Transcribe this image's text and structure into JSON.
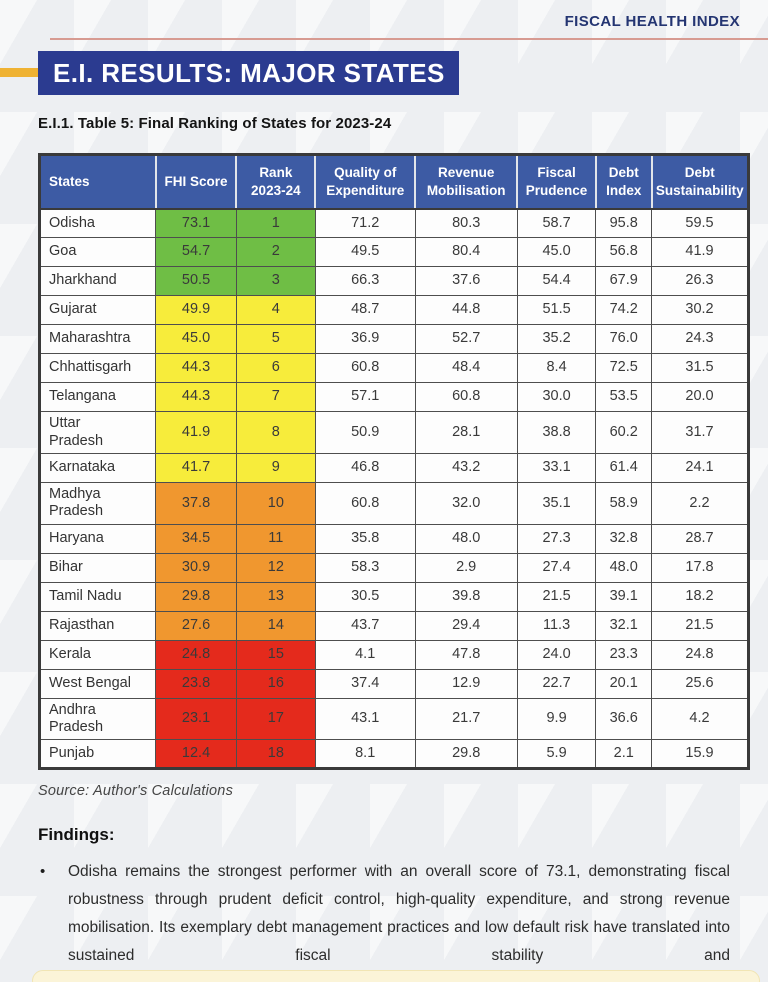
{
  "header": {
    "brand": "FISCAL HEALTH INDEX",
    "title": "E.I. RESULTS: MAJOR STATES"
  },
  "table": {
    "caption": "E.I.1. Table 5: Final Ranking of States for 2023-24",
    "columns": [
      "States",
      "FHI Score",
      "Rank\n2023-24",
      "Quality of\nExpenditure",
      "Revenue\nMobilisation",
      "Fiscal\nPrudence",
      "Debt\nIndex",
      "Debt\nSustainability"
    ],
    "rows": [
      {
        "state": "Odisha",
        "fhi_score": "73.1",
        "rank": "1",
        "tier": "green",
        "quality_of_expenditure": "71.2",
        "revenue_mobilisation": "80.3",
        "fiscal_prudence": "58.7",
        "debt_index": "95.8",
        "debt_sustainability": "59.5"
      },
      {
        "state": "Goa",
        "fhi_score": "54.7",
        "rank": "2",
        "tier": "green",
        "quality_of_expenditure": "49.5",
        "revenue_mobilisation": "80.4",
        "fiscal_prudence": "45.0",
        "debt_index": "56.8",
        "debt_sustainability": "41.9"
      },
      {
        "state": "Jharkhand",
        "fhi_score": "50.5",
        "rank": "3",
        "tier": "green",
        "quality_of_expenditure": "66.3",
        "revenue_mobilisation": "37.6",
        "fiscal_prudence": "54.4",
        "debt_index": "67.9",
        "debt_sustainability": "26.3"
      },
      {
        "state": "Gujarat",
        "fhi_score": "49.9",
        "rank": "4",
        "tier": "yellow",
        "quality_of_expenditure": "48.7",
        "revenue_mobilisation": "44.8",
        "fiscal_prudence": "51.5",
        "debt_index": "74.2",
        "debt_sustainability": "30.2"
      },
      {
        "state": "Maharashtra",
        "fhi_score": "45.0",
        "rank": "5",
        "tier": "yellow",
        "quality_of_expenditure": "36.9",
        "revenue_mobilisation": "52.7",
        "fiscal_prudence": "35.2",
        "debt_index": "76.0",
        "debt_sustainability": "24.3"
      },
      {
        "state": "Chhattisgarh",
        "fhi_score": "44.3",
        "rank": "6",
        "tier": "yellow",
        "quality_of_expenditure": "60.8",
        "revenue_mobilisation": "48.4",
        "fiscal_prudence": "8.4",
        "debt_index": "72.5",
        "debt_sustainability": "31.5"
      },
      {
        "state": "Telangana",
        "fhi_score": "44.3",
        "rank": "7",
        "tier": "yellow",
        "quality_of_expenditure": "57.1",
        "revenue_mobilisation": "60.8",
        "fiscal_prudence": "30.0",
        "debt_index": "53.5",
        "debt_sustainability": "20.0"
      },
      {
        "state": "Uttar\nPradesh",
        "fhi_score": "41.9",
        "rank": "8",
        "tier": "yellow",
        "quality_of_expenditure": "50.9",
        "revenue_mobilisation": "28.1",
        "fiscal_prudence": "38.8",
        "debt_index": "60.2",
        "debt_sustainability": "31.7"
      },
      {
        "state": "Karnataka",
        "fhi_score": "41.7",
        "rank": "9",
        "tier": "yellow",
        "quality_of_expenditure": "46.8",
        "revenue_mobilisation": "43.2",
        "fiscal_prudence": "33.1",
        "debt_index": "61.4",
        "debt_sustainability": "24.1"
      },
      {
        "state": "Madhya\nPradesh",
        "fhi_score": "37.8",
        "rank": "10",
        "tier": "orange",
        "quality_of_expenditure": "60.8",
        "revenue_mobilisation": "32.0",
        "fiscal_prudence": "35.1",
        "debt_index": "58.9",
        "debt_sustainability": "2.2"
      },
      {
        "state": "Haryana",
        "fhi_score": "34.5",
        "rank": "11",
        "tier": "orange",
        "quality_of_expenditure": "35.8",
        "revenue_mobilisation": "48.0",
        "fiscal_prudence": "27.3",
        "debt_index": "32.8",
        "debt_sustainability": "28.7"
      },
      {
        "state": "Bihar",
        "fhi_score": "30.9",
        "rank": "12",
        "tier": "orange",
        "quality_of_expenditure": "58.3",
        "revenue_mobilisation": "2.9",
        "fiscal_prudence": "27.4",
        "debt_index": "48.0",
        "debt_sustainability": "17.8"
      },
      {
        "state": "Tamil Nadu",
        "fhi_score": "29.8",
        "rank": "13",
        "tier": "orange",
        "quality_of_expenditure": "30.5",
        "revenue_mobilisation": "39.8",
        "fiscal_prudence": "21.5",
        "debt_index": "39.1",
        "debt_sustainability": "18.2"
      },
      {
        "state": "Rajasthan",
        "fhi_score": "27.6",
        "rank": "14",
        "tier": "orange",
        "quality_of_expenditure": "43.7",
        "revenue_mobilisation": "29.4",
        "fiscal_prudence": "11.3",
        "debt_index": "32.1",
        "debt_sustainability": "21.5"
      },
      {
        "state": "Kerala",
        "fhi_score": "24.8",
        "rank": "15",
        "tier": "red",
        "quality_of_expenditure": "4.1",
        "revenue_mobilisation": "47.8",
        "fiscal_prudence": "24.0",
        "debt_index": "23.3",
        "debt_sustainability": "24.8"
      },
      {
        "state": "West Bengal",
        "fhi_score": "23.8",
        "rank": "16",
        "tier": "red",
        "quality_of_expenditure": "37.4",
        "revenue_mobilisation": "12.9",
        "fiscal_prudence": "22.7",
        "debt_index": "20.1",
        "debt_sustainability": "25.6"
      },
      {
        "state": "Andhra\nPradesh",
        "fhi_score": "23.1",
        "rank": "17",
        "tier": "red",
        "quality_of_expenditure": "43.1",
        "revenue_mobilisation": "21.7",
        "fiscal_prudence": "9.9",
        "debt_index": "36.6",
        "debt_sustainability": "4.2"
      },
      {
        "state": "Punjab",
        "fhi_score": "12.4",
        "rank": "18",
        "tier": "red",
        "quality_of_expenditure": "8.1",
        "revenue_mobilisation": "29.8",
        "fiscal_prudence": "5.9",
        "debt_index": "2.1",
        "debt_sustainability": "15.9"
      }
    ],
    "source": "Source: Author's Calculations"
  },
  "findings": {
    "heading": "Findings:",
    "bullets": [
      "Odisha remains the strongest performer with an overall score of 73.1, demonstrating fiscal robustness through prudent deficit control, high-quality expenditure, and strong revenue mobilisation. Its exemplary debt management practices and low default risk have translated into sustained fiscal stability and"
    ]
  },
  "colors": {
    "brand_navy": "#243572",
    "title_banner": "#2b3b90",
    "table_header": "#3d5ba4",
    "accent_gold": "#efb233",
    "rule_salmon": "#d79b92",
    "tier_green": "#6fbe45",
    "tier_yellow": "#f7ec3b",
    "tier_orange": "#f0972f",
    "tier_red": "#e42a1c"
  }
}
